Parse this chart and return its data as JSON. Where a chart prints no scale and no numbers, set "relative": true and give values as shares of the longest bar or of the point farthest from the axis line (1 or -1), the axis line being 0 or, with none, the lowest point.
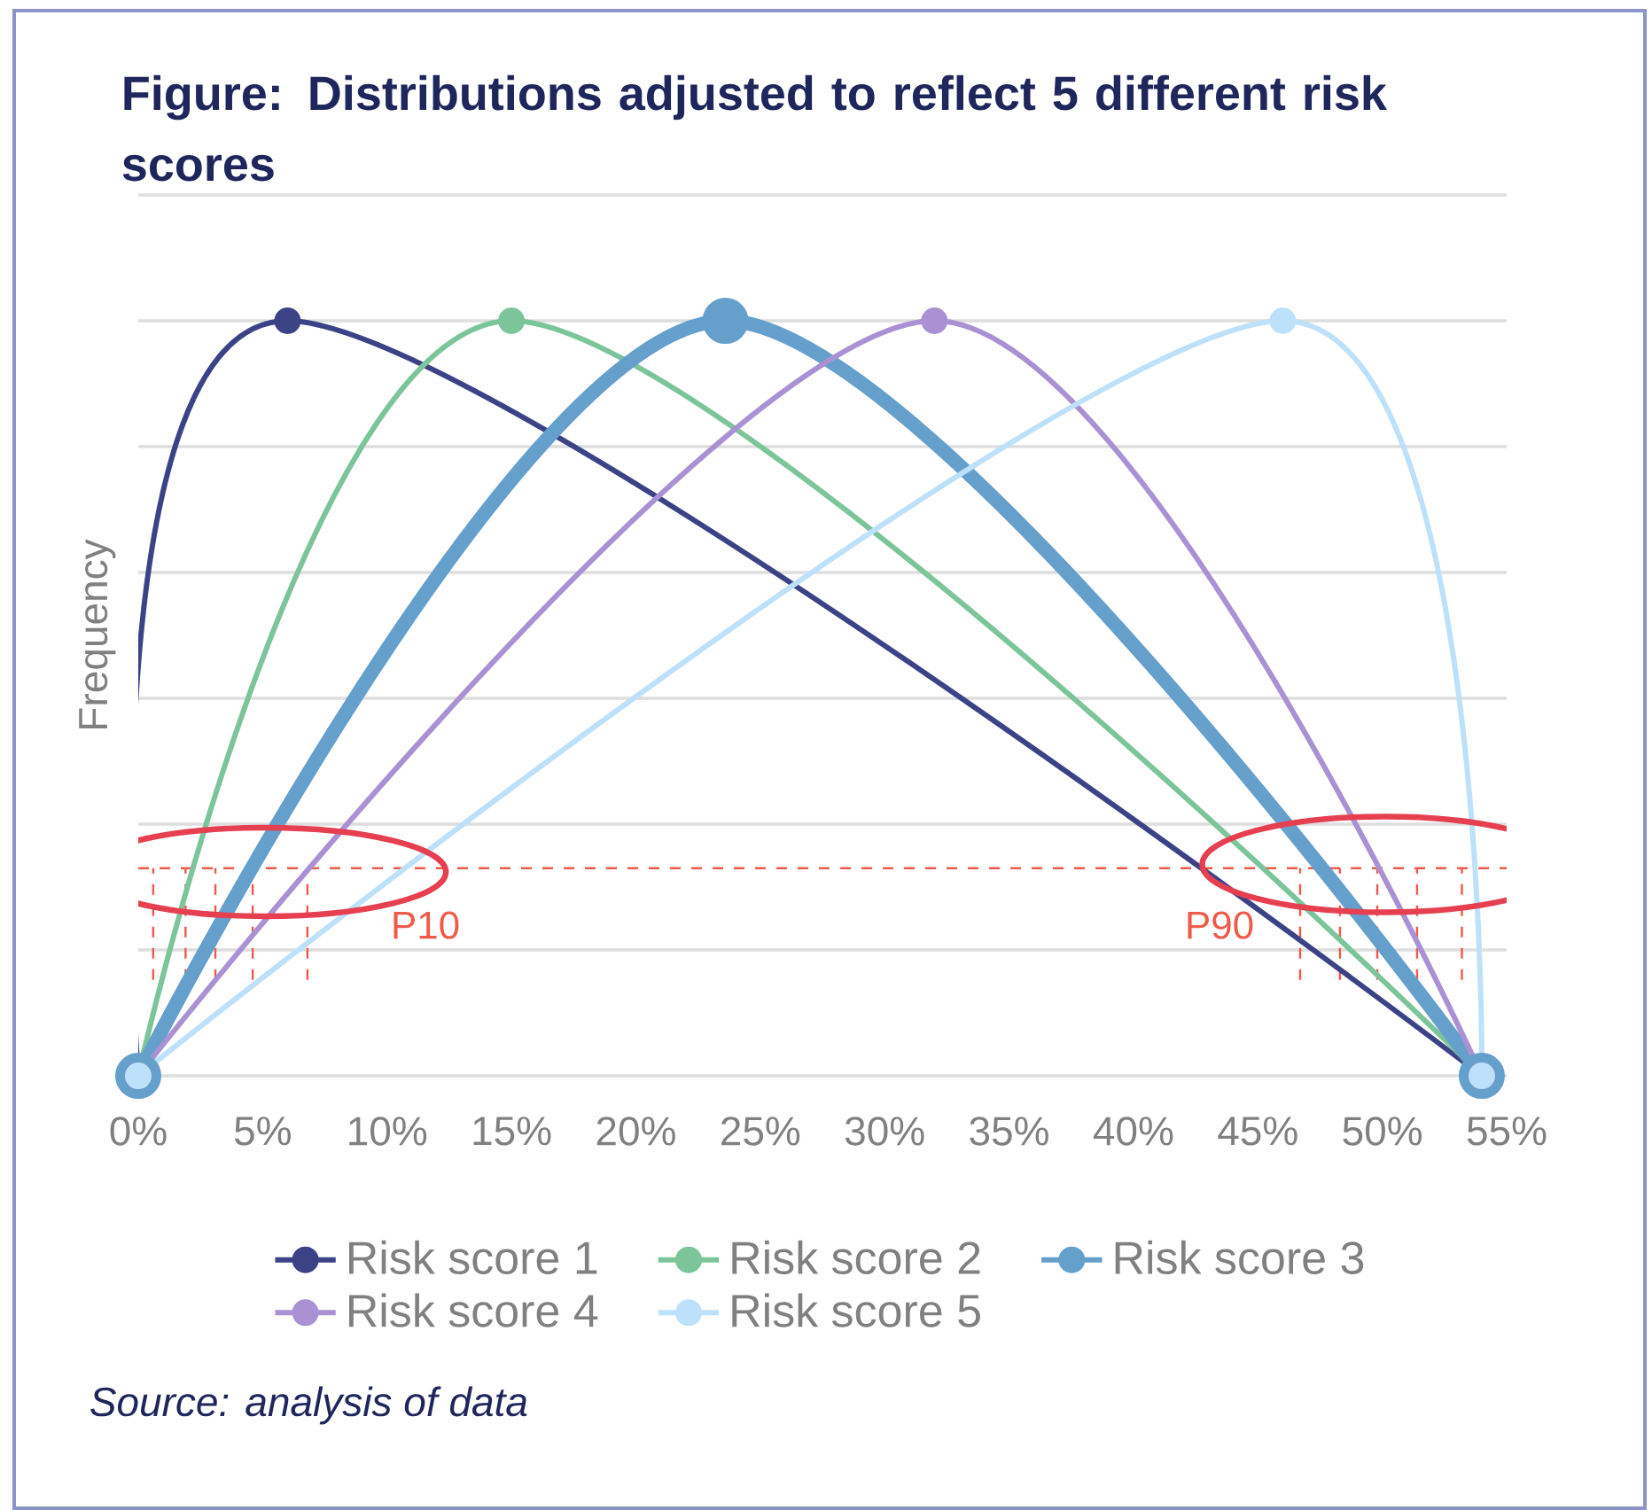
{
  "chart_data": {
    "type": "line",
    "title": "Figure: Distributions adjusted to reflect 5 different risk scores",
    "ylabel": "Frequency",
    "relative": true,
    "grid": "y",
    "legend": "bottom",
    "marker": "circle",
    "line_style": "solid",
    "xlim": [
      0,
      55
    ],
    "xticks": [
      {
        "value": 0,
        "label": "0%"
      },
      {
        "value": 5,
        "label": "5%"
      },
      {
        "value": 10,
        "label": "10%"
      },
      {
        "value": 15,
        "label": "15%"
      },
      {
        "value": 20,
        "label": "20%"
      },
      {
        "value": 25,
        "label": "25%"
      },
      {
        "value": 30,
        "label": "30%"
      },
      {
        "value": 35,
        "label": "35%"
      },
      {
        "value": 40,
        "label": "40%"
      },
      {
        "value": 45,
        "label": "45%"
      },
      {
        "value": 50,
        "label": "50%"
      },
      {
        "value": 55,
        "label": "55%"
      }
    ],
    "series": [
      {
        "name": "Risk score 1",
        "color": "#3b4386",
        "x": [
          0,
          6,
          54
        ],
        "values": [
          0,
          1,
          0
        ]
      },
      {
        "name": "Risk score 2",
        "color": "#7cc59a",
        "x": [
          0,
          15,
          54
        ],
        "values": [
          0,
          1,
          0
        ]
      },
      {
        "name": "Risk score 3",
        "color": "#659fcb",
        "x": [
          0,
          23.6,
          54
        ],
        "values": [
          0,
          1,
          0
        ]
      },
      {
        "name": "Risk score 4",
        "color": "#a991d4",
        "x": [
          0,
          32,
          54
        ],
        "values": [
          0,
          1,
          0
        ]
      },
      {
        "name": "Risk score 5",
        "color": "#bde0fb",
        "x": [
          0,
          46,
          54
        ],
        "values": [
          0,
          1,
          0
        ]
      }
    ],
    "ref_lines": [
      {
        "axis": "y",
        "value": 0.275,
        "color": "#ef5a4a",
        "line_style": "dashed"
      },
      {
        "axis": "x",
        "value": 0.6,
        "color": "#ef5a4a",
        "line_style": "dashed"
      },
      {
        "axis": "x",
        "value": 1.9,
        "color": "#ef5a4a",
        "line_style": "dashed"
      },
      {
        "axis": "x",
        "value": 3.1,
        "color": "#ef5a4a",
        "line_style": "dashed"
      },
      {
        "axis": "x",
        "value": 4.6,
        "color": "#ef5a4a",
        "line_style": "dashed"
      },
      {
        "axis": "x",
        "value": 6.8,
        "color": "#ef5a4a",
        "line_style": "dashed"
      },
      {
        "axis": "x",
        "value": 46.7,
        "color": "#ef5a4a",
        "line_style": "dashed"
      },
      {
        "axis": "x",
        "value": 48.3,
        "color": "#ef5a4a",
        "line_style": "dashed"
      },
      {
        "axis": "x",
        "value": 49.8,
        "color": "#ef5a4a",
        "line_style": "dashed"
      },
      {
        "axis": "x",
        "value": 51.4,
        "color": "#ef5a4a",
        "line_style": "dashed"
      },
      {
        "axis": "x",
        "value": 53.2,
        "color": "#ef5a4a",
        "line_style": "dashed"
      }
    ],
    "annotations": [
      "P10",
      "P90",
      "Source: analysis of data"
    ]
  }
}
